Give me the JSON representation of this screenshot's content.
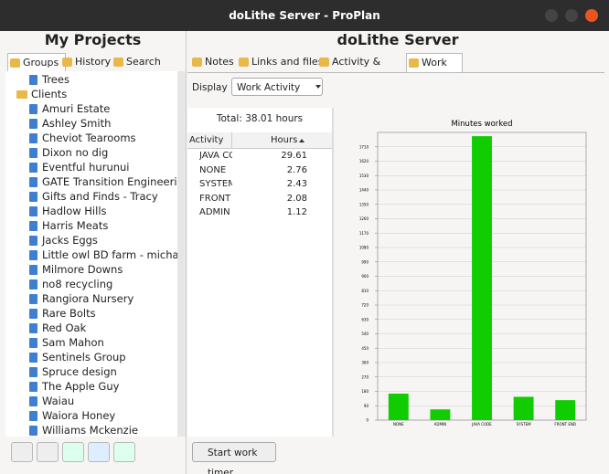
{
  "window": {
    "title": "doLithe Server - ProPlan"
  },
  "sidebar": {
    "title": "My Projects",
    "tabs": [
      "Groups",
      "History",
      "Search"
    ],
    "top_items": [
      "Trees"
    ],
    "folder": "Clients",
    "folder_items": [
      "Amuri Estate",
      "Ashley Smith",
      "Cheviot Tearooms",
      "Dixon no dig",
      "Eventful hurunui",
      "GATE Transition Engineering",
      "Gifts and Finds - Tracy",
      "Hadlow Hills",
      "Harris Meats",
      "Jacks Eggs",
      "Little owl BD farm - michael vo",
      "Milmore Downs",
      "no8 recycling",
      "Rangiora Nursery",
      "Rare Bolts",
      "Red Oak",
      "Sam Mahon",
      "Sentinels Group",
      "Spruce design",
      "The Apple Guy",
      "Waiau",
      "Waiora Honey",
      "Williams Mckenzie"
    ]
  },
  "main": {
    "title": "doLithe Server",
    "tabs": [
      "Notes",
      "Links and files",
      "Activity & events",
      "Work"
    ],
    "display_label": "Display",
    "display_value": "Work Activity",
    "total": "Total: 38.01 hours",
    "table": {
      "columns": [
        "Activity",
        "Hours"
      ],
      "rows": [
        [
          "JAVA CODE",
          "29.61"
        ],
        [
          "NONE",
          "2.76"
        ],
        [
          "SYSTEM",
          "2.43"
        ],
        [
          "FRONT END",
          "2.08"
        ],
        [
          "ADMIN",
          "1.12"
        ]
      ]
    },
    "button": "Start work timer"
  },
  "chart_data": {
    "type": "bar",
    "title": "Minutes worked",
    "categories": [
      "NONE",
      "ADMIN",
      "JAVA CODE",
      "SYSTEM",
      "FRONT END"
    ],
    "values": [
      165.6,
      67.2,
      1776.6,
      145.8,
      124.8
    ],
    "color": "#11cc00",
    "ylim": [
      0,
      1800
    ],
    "yticks": [
      0,
      90,
      180,
      270,
      360,
      450,
      540,
      630,
      720,
      810,
      900,
      990,
      1080,
      1170,
      1260,
      1350,
      1440,
      1530,
      1620,
      1710
    ],
    "grid": true
  }
}
